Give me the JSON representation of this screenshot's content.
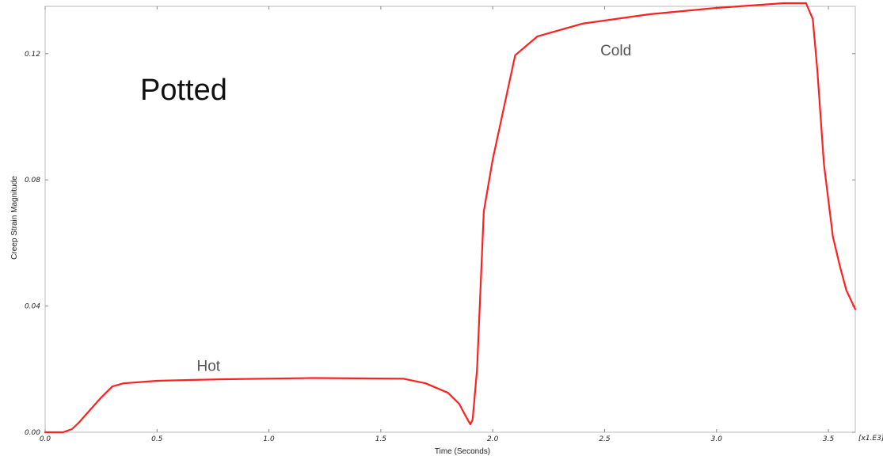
{
  "chart_data": {
    "type": "line",
    "title": "Potted",
    "xlabel": "Time (Seconds)",
    "ylabel": "Creep Strain Magnitude",
    "x_scale_label": "[x1.E3]",
    "xlim": [
      0,
      3.62
    ],
    "ylim": [
      0,
      0.135
    ],
    "x_ticks": [
      0.0,
      0.5,
      1.0,
      1.5,
      2.0,
      2.5,
      3.0,
      3.5
    ],
    "x_tick_labels": [
      "0.0",
      "0.5",
      "1.0",
      "1.5",
      "2.0",
      "2.5",
      "3.0",
      "3.5"
    ],
    "y_ticks": [
      0.0,
      0.04,
      0.08,
      0.12
    ],
    "y_tick_labels": [
      "0.00",
      "0.04",
      "0.08",
      "0.12"
    ],
    "grid": false,
    "series_color": "#ff2020",
    "annotations": [
      {
        "text": "Hot",
        "x": 0.73,
        "y": 0.0195
      },
      {
        "text": "Cold",
        "x": 2.55,
        "y": 0.1195
      }
    ],
    "series": [
      {
        "x": [
          0.0,
          0.08,
          0.12,
          0.15,
          0.2,
          0.25,
          0.3,
          0.35,
          0.5,
          0.8,
          1.2,
          1.6,
          1.7,
          1.8,
          1.85,
          1.88,
          1.9,
          1.91,
          1.93,
          1.96,
          2.0,
          2.1,
          2.2,
          2.4,
          2.7,
          3.0,
          3.3,
          3.4,
          3.43,
          3.45,
          3.48,
          3.52,
          3.55,
          3.58,
          3.62
        ],
        "y": [
          0.0,
          0.0,
          0.001,
          0.003,
          0.007,
          0.011,
          0.0145,
          0.0155,
          0.0163,
          0.0168,
          0.0172,
          0.017,
          0.0155,
          0.0125,
          0.009,
          0.005,
          0.0025,
          0.004,
          0.02,
          0.07,
          0.0865,
          0.1195,
          0.1255,
          0.1295,
          0.1325,
          0.1345,
          0.136,
          0.136,
          0.131,
          0.115,
          0.085,
          0.062,
          0.053,
          0.045,
          0.039
        ]
      }
    ]
  }
}
